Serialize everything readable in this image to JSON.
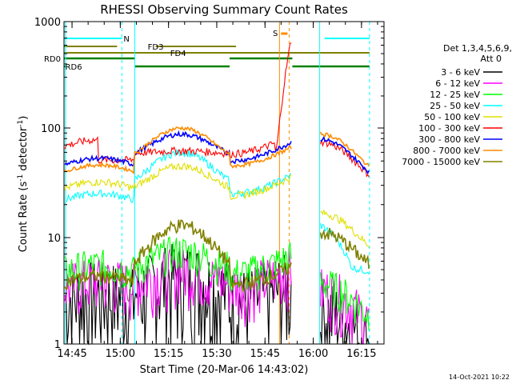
{
  "chart_data": {
    "type": "line",
    "title": "RHESSI Observing Summary Count Rates",
    "xlabel": "Start Time (20-Mar-06 14:43:02)",
    "ylabel_main": "Count Rate (s",
    "ylabel_sup1": "-1",
    "ylabel_mid": " detector",
    "ylabel_sup2": "-1",
    "ylabel_end": ")",
    "yscale": "log",
    "ylim": [
      1,
      1000
    ],
    "xlim_minutes": [
      "14:42:30",
      "16:22:00"
    ],
    "x_ticks": [
      "14:45",
      "15:00",
      "15:15",
      "15:30",
      "15:45",
      "16:00",
      "16:15"
    ],
    "y_ticks": [
      "1",
      "10",
      "100",
      "1000"
    ],
    "legend_header": [
      "Det 1,3,4,5,6,9,",
      "Att 0"
    ],
    "series": [
      {
        "name": "3 - 6 keV",
        "color": "#000000"
      },
      {
        "name": "6 - 12 keV",
        "color": "#ff00ff"
      },
      {
        "name": "12 - 25 keV",
        "color": "#00ff00"
      },
      {
        "name": "25 - 50 keV",
        "color": "#00ffff"
      },
      {
        "name": "50 - 100 keV",
        "color": "#e0e000"
      },
      {
        "name": "100 - 300 keV",
        "color": "#ff0000"
      },
      {
        "name": "300 - 800 keV",
        "color": "#0000ff"
      },
      {
        "name": "800 - 7000 keV",
        "color": "#ff8c00"
      },
      {
        "name": "7000 - 15000 keV",
        "color": "#808000"
      }
    ],
    "flags": [
      {
        "label": "N",
        "color": "#00ffff"
      },
      {
        "label": "S",
        "color": "#ff8c00"
      },
      {
        "label": "FD3",
        "color": "#808000"
      },
      {
        "label": "FD4",
        "color": "#808000"
      },
      {
        "label": "RD0",
        "color": "#008000"
      },
      {
        "label": "RD6",
        "color": "#008000"
      }
    ]
  },
  "footer": {
    "timestamp": "14-Oct-2021 10:22"
  }
}
